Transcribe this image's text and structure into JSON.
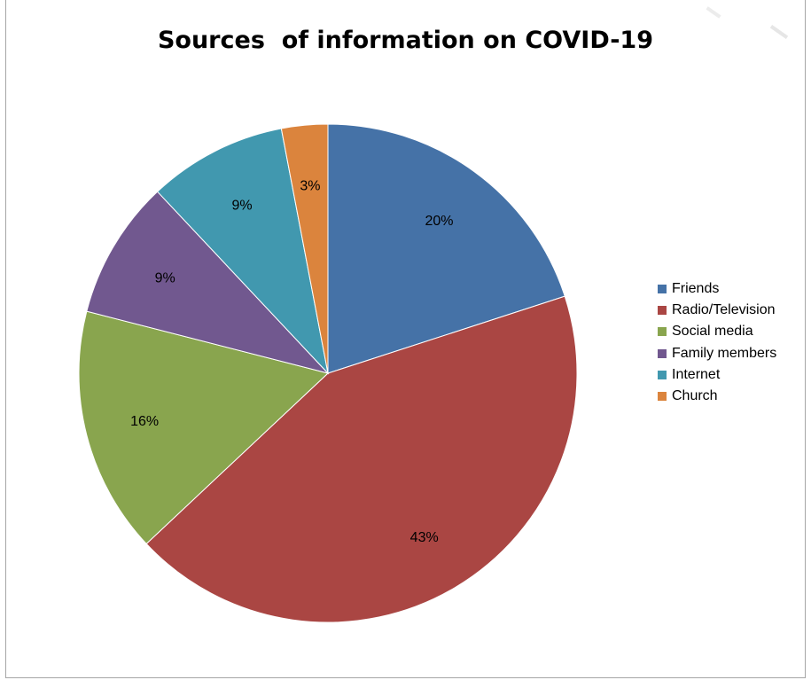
{
  "chart_data": {
    "type": "pie",
    "title": "Sources  of information on COVID-19",
    "start_angle_deg": 0,
    "direction": "clockwise",
    "slices": [
      {
        "name": "Friends",
        "value": 20,
        "label": "20%",
        "color": "#4572a7"
      },
      {
        "name": "Radio/Television",
        "value": 43,
        "label": "43%",
        "color": "#aa4643"
      },
      {
        "name": "Social media",
        "value": 16,
        "label": "16%",
        "color": "#89a54e"
      },
      {
        "name": "Family members",
        "value": 9,
        "label": "9%",
        "color": "#71588f"
      },
      {
        "name": "Internet",
        "value": 9,
        "label": "9%",
        "color": "#4198af"
      },
      {
        "name": "Church",
        "value": 3,
        "label": "3%",
        "color": "#db843d"
      }
    ],
    "legend_position": "right"
  }
}
